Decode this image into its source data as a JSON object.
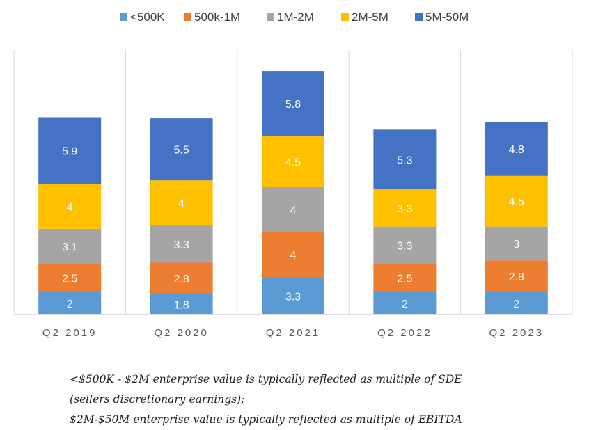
{
  "colors": {
    "lt500k": "#5B9BD5",
    "500k_1m": "#ED7D31",
    "1m_2m": "#A5A5A5",
    "2m_5m": "#FFC000",
    "5m_50m": "#4472C4",
    "grid": "#D9D9D9",
    "axis": "#BFBFBF"
  },
  "chart_data": {
    "type": "bar",
    "stacked": true,
    "title": "",
    "xlabel": "",
    "ylabel": "",
    "categories": [
      "Q2 2019",
      "Q2 2020",
      "Q2 2021",
      "Q2 2022",
      "Q2 2023"
    ],
    "series": [
      {
        "name": "<500K",
        "color": "#5B9BD5",
        "values": [
          2,
          1.8,
          3.3,
          2,
          2
        ]
      },
      {
        "name": "500k-1M",
        "color": "#ED7D31",
        "values": [
          2.5,
          2.8,
          4,
          2.5,
          2.8
        ]
      },
      {
        "name": "1M-2M",
        "color": "#A5A5A5",
        "values": [
          3.1,
          3.3,
          4,
          3.3,
          3
        ]
      },
      {
        "name": "2M-5M",
        "color": "#FFC000",
        "values": [
          4,
          4,
          4.5,
          3.3,
          4.5
        ]
      },
      {
        "name": "5M-50M",
        "color": "#4472C4",
        "values": [
          5.9,
          5.5,
          5.8,
          5.3,
          4.8
        ]
      }
    ],
    "legend": "top",
    "grid": "vertical",
    "data_labels": true
  },
  "notes": {
    "line1": "<$500K - $2M enterprise value is typically reflected as multiple of SDE",
    "line2": "(sellers discretionary earnings);",
    "line3": "$2M-$50M enterprise value is typically reflected as multiple of EBITDA"
  }
}
